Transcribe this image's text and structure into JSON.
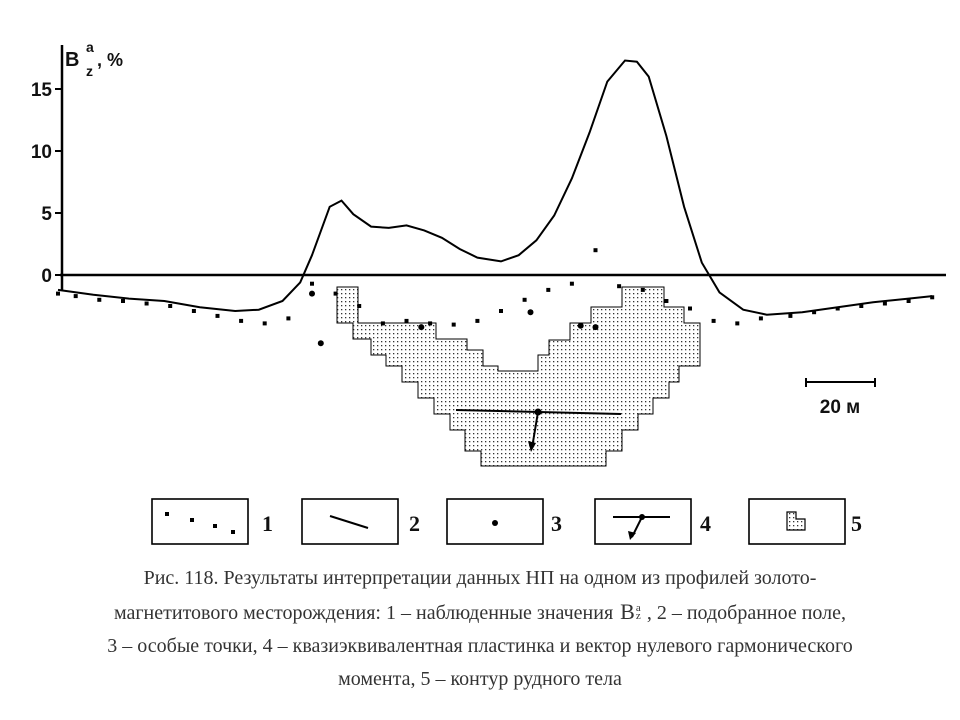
{
  "chart_data": {
    "type": "line",
    "ylabel": {
      "main": "B",
      "sup": "a",
      "sub": "z",
      "unit": ", %"
    },
    "yticks": [
      0,
      5,
      10,
      15
    ],
    "ylim": [
      -5,
      19
    ],
    "xlim": [
      0,
      300
    ],
    "series": [
      {
        "kind": "points",
        "x": [
          0,
          6,
          14,
          22,
          30,
          38,
          46,
          54,
          62,
          70,
          78,
          86,
          94,
          102,
          110,
          118,
          126,
          134,
          142,
          150,
          158,
          166,
          174,
          182,
          190,
          198,
          206,
          214,
          222,
          230,
          238,
          248,
          256,
          264,
          272,
          280,
          288,
          296
        ],
        "values": [
          -1.5,
          -1.7,
          -2.0,
          -2.1,
          -2.3,
          -2.5,
          -2.9,
          -3.3,
          -3.7,
          -3.9,
          -3.5,
          -0.7,
          -1.5,
          -2.5,
          -3.9,
          -3.7,
          -3.9,
          -4.0,
          -3.7,
          -2.9,
          -2.0,
          -1.2,
          -0.7,
          2.0,
          -0.9,
          -1.2,
          -2.1,
          -2.7,
          -3.7,
          -3.9,
          -3.5,
          -3.3,
          -3.0,
          -2.7,
          -2.5,
          -2.3,
          -2.1,
          -1.8
        ]
      },
      {
        "kind": "fitted",
        "x": [
          0,
          12,
          24,
          36,
          48,
          60,
          68,
          76,
          82,
          86,
          92,
          96,
          100,
          106,
          112,
          118,
          124,
          130,
          136,
          142,
          150,
          156,
          162,
          168,
          174,
          180,
          186,
          192,
          196,
          200,
          206,
          212,
          218,
          224,
          232,
          240,
          252,
          264,
          276,
          288,
          296
        ],
        "values": [
          -1.2,
          -1.6,
          -1.9,
          -2.1,
          -2.6,
          -2.9,
          -2.8,
          -2.1,
          -0.6,
          1.6,
          5.5,
          6.0,
          4.9,
          3.9,
          3.8,
          4.0,
          3.6,
          3.0,
          2.1,
          1.4,
          1.1,
          1.6,
          2.8,
          4.8,
          7.8,
          11.5,
          15.6,
          17.3,
          17.2,
          16.0,
          11.2,
          5.5,
          1.0,
          -1.4,
          -2.8,
          -3.2,
          -3.0,
          -2.6,
          -2.2,
          -1.9,
          -1.7
        ]
      },
      {
        "kind": "singular_points",
        "x": [
          86,
          89,
          123,
          160,
          177,
          182
        ],
        "values": [
          -1.5,
          -5.5,
          -4.2,
          -3.0,
          -4.1,
          -4.2
        ]
      }
    ],
    "scale_bar": "20 м",
    "legend": [
      "1",
      "2",
      "3",
      "4",
      "5"
    ]
  },
  "caption": {
    "line1": "Рис. 118. Результаты интерпретации данных НП на одном из профилей золото-",
    "line2_part1": "магнетитового месторождения: 1 – наблюденные значения",
    "bz_main": "B",
    "bz_sup": "a",
    "bz_sub": "z",
    "line2_part2": ", 2 – подобранное поле,",
    "line3": "3 – особые точки, 4 – квазиэквивалентная пластинка и вектор нулевого гармонического",
    "line4": "момента, 5 – контур рудного тела"
  }
}
